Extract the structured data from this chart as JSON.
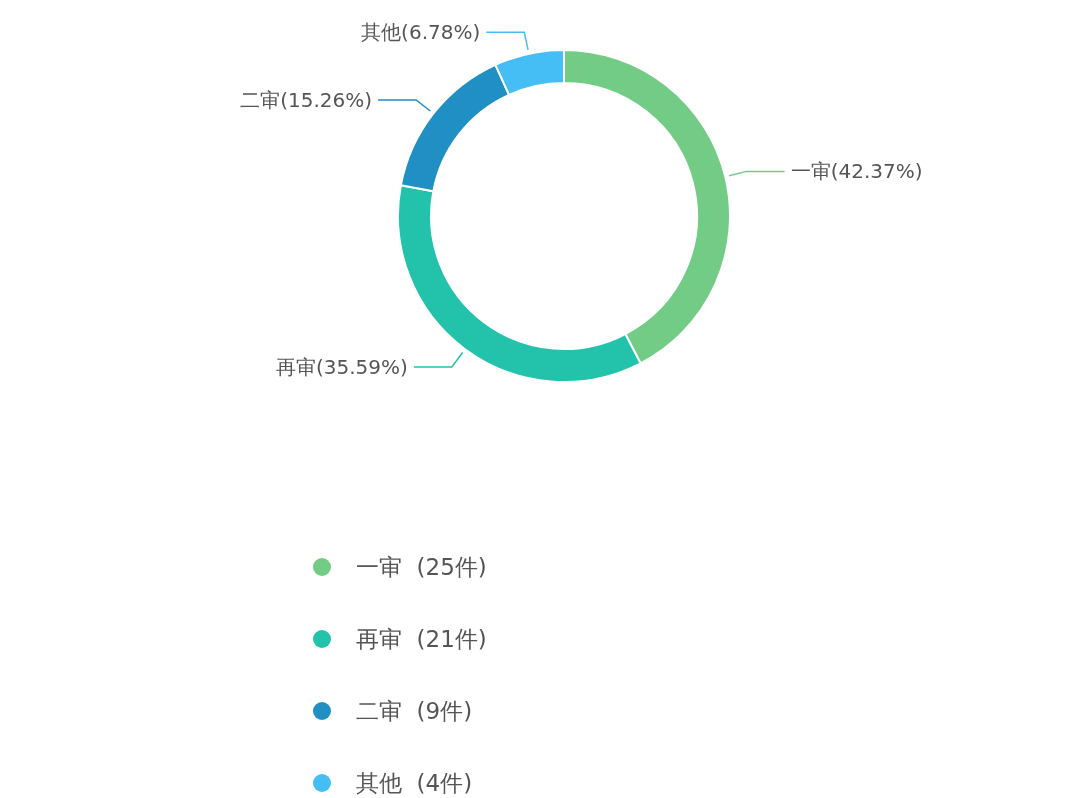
{
  "chart_data": {
    "type": "donut",
    "categories": [
      "一审  (25件)",
      "再审  (21件)",
      "二审  (9件)",
      "其他  (4件)"
    ],
    "values": [
      25,
      21,
      9,
      4
    ],
    "value_labels": [
      "一审(42.37%)",
      "再审(35.59%)",
      "二审(15.26%)",
      "其他(6.78%)"
    ],
    "colors": [
      "#73cc85",
      "#22c3aa",
      "#1f8fc4",
      "#45bdf5"
    ],
    "legend": "bottom"
  }
}
